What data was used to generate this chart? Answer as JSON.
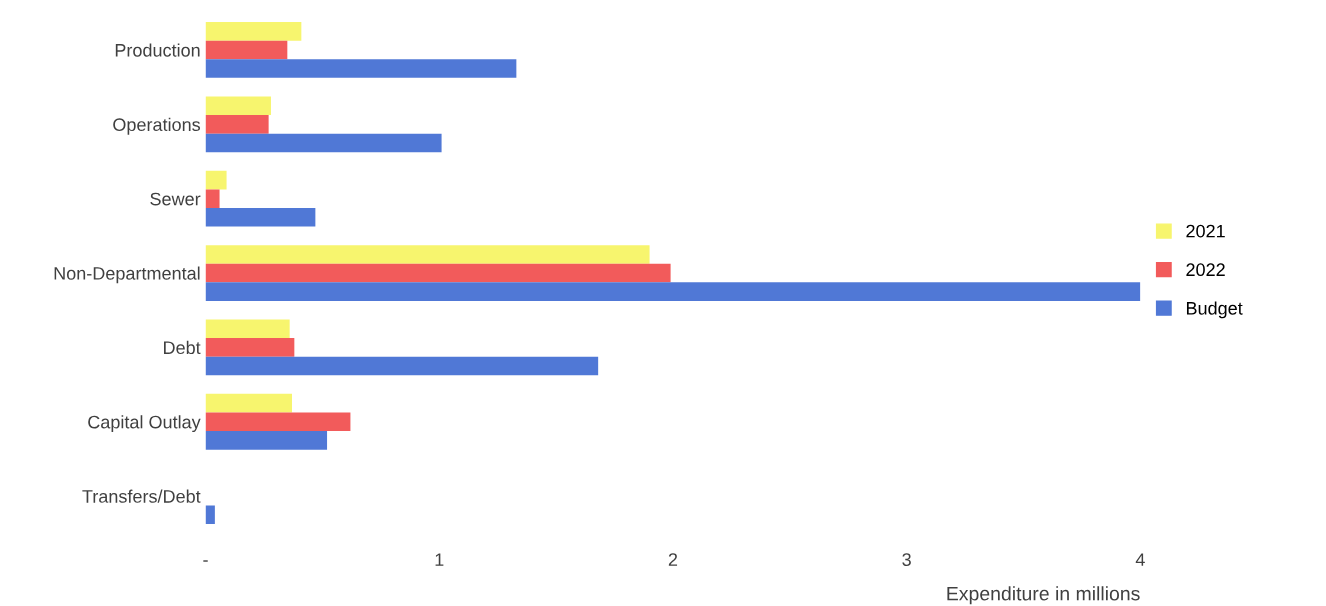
{
  "chart_data": {
    "type": "bar",
    "orientation": "horizontal",
    "xlabel": "Expenditure in millions",
    "categories": [
      "Production",
      "Operations",
      "Sewer",
      "Non-Departmental",
      "Debt",
      "Capital Outlay",
      "Transfers/Debt"
    ],
    "series": [
      {
        "name": "2021",
        "color": "#f7f56e",
        "values": [
          0.41,
          0.28,
          0.09,
          1.9,
          0.36,
          0.37,
          null
        ]
      },
      {
        "name": "2022",
        "color": "#f25b5b",
        "values": [
          0.35,
          0.27,
          0.06,
          1.99,
          0.38,
          0.62,
          null
        ]
      },
      {
        "name": "Budget",
        "color": "#5078d6",
        "values": [
          1.33,
          1.01,
          0.47,
          4.0,
          1.68,
          0.52,
          0.04
        ]
      }
    ],
    "xlim": [
      0,
      4
    ],
    "xticks": [
      {
        "value": 0,
        "label": "-"
      },
      1,
      2,
      3,
      4
    ],
    "grid": false,
    "legend": "right"
  }
}
